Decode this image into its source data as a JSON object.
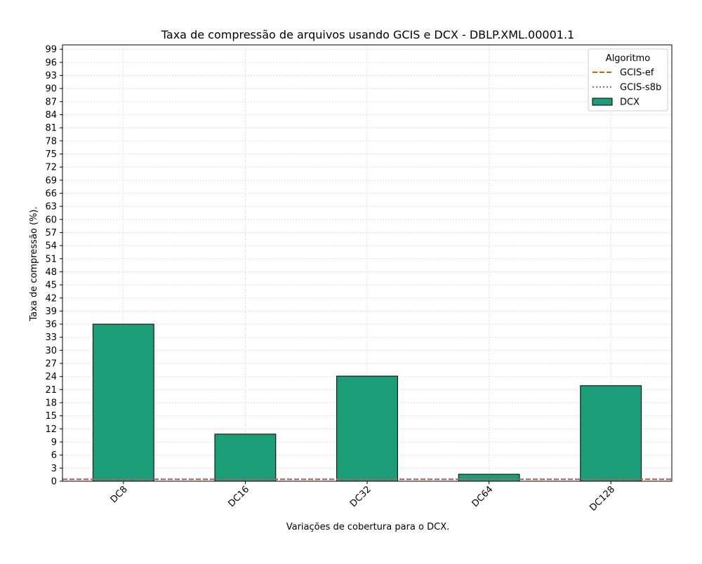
{
  "chart_data": {
    "type": "bar",
    "title": "Taxa de compressão de arquivos usando GCIS e DCX -  DBLP.XML.00001.1",
    "xlabel": "Variações de cobertura para o DCX.",
    "ylabel": "Taxa de compressão (%).",
    "categories": [
      "DC8",
      "DC16",
      "DC32",
      "DC64",
      "DC128"
    ],
    "series": [
      {
        "name": "DCX",
        "values": [
          36.0,
          10.8,
          24.1,
          1.6,
          21.9
        ],
        "color": "#1b9e77"
      }
    ],
    "reference_lines": [
      {
        "name": "GCIS-ef",
        "value": 0.45,
        "color": "#d95f02",
        "style": "dashed"
      },
      {
        "name": "GCIS-s8b",
        "value": 0.45,
        "color": "#7570b3",
        "style": "dotted"
      }
    ],
    "ylim": [
      0,
      100
    ],
    "yticks": [
      0,
      3,
      6,
      9,
      12,
      15,
      18,
      21,
      24,
      27,
      30,
      33,
      36,
      39,
      42,
      45,
      48,
      51,
      54,
      57,
      60,
      63,
      66,
      69,
      72,
      75,
      78,
      81,
      84,
      87,
      90,
      93,
      96,
      99
    ],
    "grid": true,
    "legend": {
      "title": "Algoritmo",
      "placement": "top-right",
      "entries": [
        "GCIS-ef",
        "GCIS-s8b",
        "DCX"
      ]
    }
  }
}
